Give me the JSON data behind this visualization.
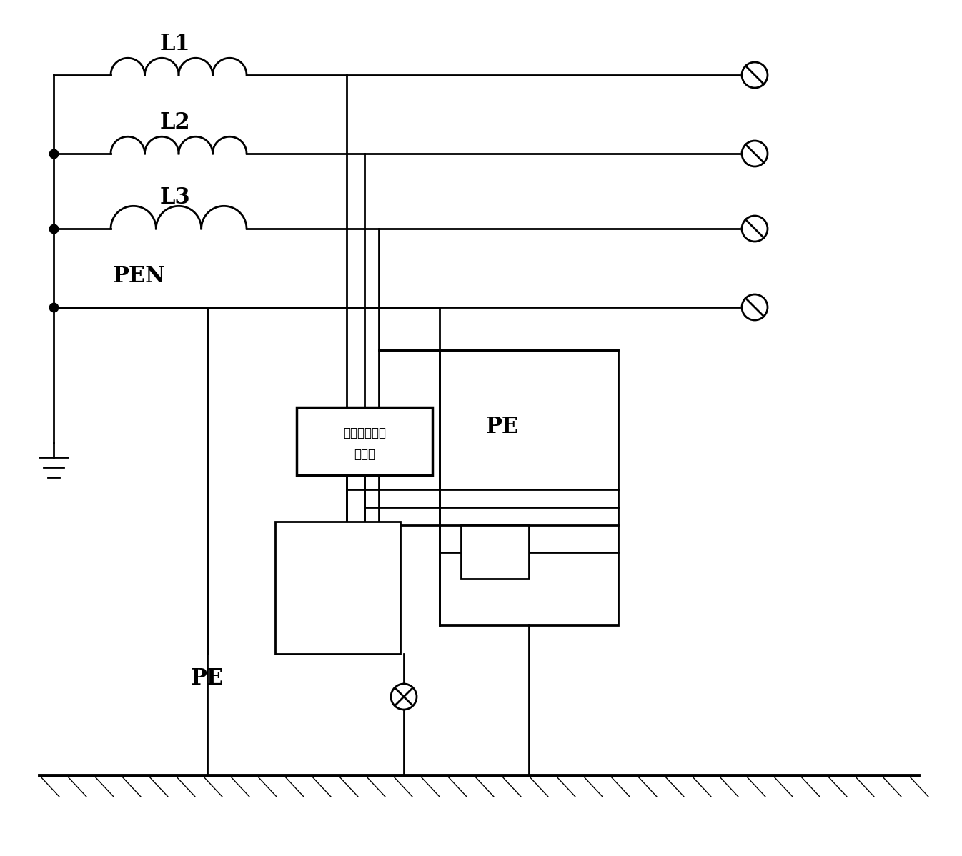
{
  "bg_color": "#ffffff",
  "lc": "#000000",
  "lw": 2.0,
  "fig_w": 13.46,
  "fig_h": 11.98,
  "rcd_label_1": "四极剩余电流",
  "rcd_label_2": "保护器",
  "L1_label": "L1",
  "L2_label": "L2",
  "L3_label": "L3",
  "PEN_label": "PEN",
  "PE_label": "PE"
}
